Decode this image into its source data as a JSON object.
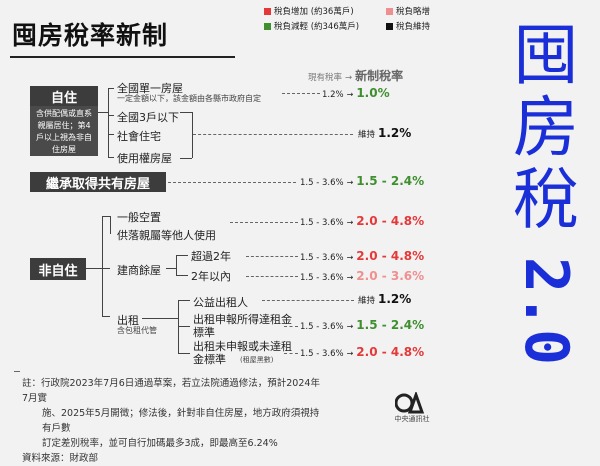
{
  "title": "囤房稅率新制",
  "legend": [
    {
      "label": "稅負增加 (約36萬戶)",
      "color": "#e53939"
    },
    {
      "label": "稅負略增",
      "color": "#ef8f8f"
    },
    {
      "label": "稅負減輕 (約346萬戶)",
      "color": "#3f8f2f"
    },
    {
      "label": "稅負維持",
      "color": "#111111"
    }
  ],
  "header": {
    "current": "現有稅率",
    "arrow": "→",
    "new": "新制稅率"
  },
  "self_use": {
    "label": "自住",
    "desc": "含供配偶或直系親屬居住；第4戶以上視為非自住房屋",
    "items": [
      {
        "label": "全國單一房屋",
        "sub": "一定金額以下，該金額由各縣市政府自定"
      },
      {
        "label": "全國3戶以下"
      },
      {
        "label": "社會住宅"
      },
      {
        "label": "使用權房屋"
      }
    ],
    "rate1": {
      "current": "1.2%",
      "new": "1.0%"
    },
    "rate2": {
      "current": "維持",
      "new": "1.2%"
    }
  },
  "inherit": {
    "label": "繼承取得共有房屋",
    "rate": {
      "current": "1.5 - 3.6%",
      "new": "1.5 - 2.4%"
    }
  },
  "non_self": {
    "label": "非自住",
    "items": [
      {
        "label": "一般空置",
        "rate": {
          "current": "1.5 - 3.6%",
          "new": "2.0 - 4.8%"
        }
      },
      {
        "label": "供落親屬等他人使用",
        "rate": {
          "current": "1.5 - 3.6%",
          "new": "2.0 - 4.8%"
        }
      },
      {
        "label": "建商餘屋"
      },
      {
        "label": "超過2年",
        "rate": {
          "current": "1.5 - 3.6%",
          "new": "2.0 - 4.8%"
        }
      },
      {
        "label": "2年以內",
        "rate": {
          "current": "1.5 - 3.6%",
          "new": "2.0 - 3.6%"
        }
      },
      {
        "label": "出租",
        "sub": "含包租代管"
      },
      {
        "label": "公益出租人",
        "rate": {
          "current": "維持",
          "new": "1.2%"
        }
      },
      {
        "label": "出租申報所得達租金標準",
        "rate": {
          "current": "1.5 - 3.6%",
          "new": "1.5 - 2.4%"
        }
      },
      {
        "label": "出租未申報或未達租金標準",
        "sub": "(租屋黑數)",
        "rate": {
          "current": "1.5 - 3.6%",
          "new": "2.0 - 4.8%"
        }
      }
    ]
  },
  "big_vertical": {
    "chars": [
      "囤",
      "房",
      "稅"
    ],
    "version": "2.0"
  },
  "notes": [
    "註：行政院2023年7月6日通過草案，若立法院通過修法，預計2024年7月實",
    "施、2025年5月開徵；修法後，針對非自住房屋，地方政府須視持有戶數",
    "訂定差別稅率，並可自行加碼最多3成，即最高至6.24%",
    "資料來源：財政部"
  ],
  "logo": {
    "text": "CNA",
    "caption": "中央通訊社"
  }
}
